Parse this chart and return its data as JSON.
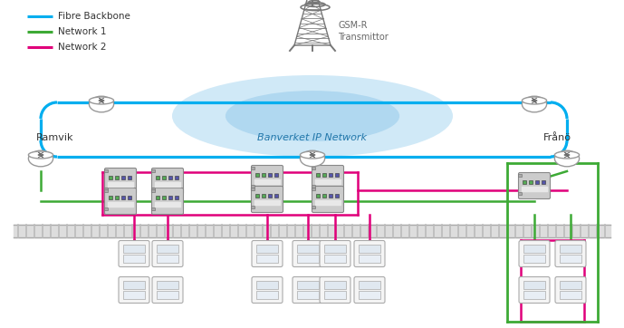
{
  "legend": [
    {
      "label": "Fibre Backbone",
      "color": "#00AEEF"
    },
    {
      "label": "Network 1",
      "color": "#3DAA35"
    },
    {
      "label": "Network 2",
      "color": "#E0007A"
    }
  ],
  "gsm_r_label": [
    "GSM-R",
    "Transmittor"
  ],
  "network_label": "Banverket IP Network",
  "location_left": "Ramvik",
  "location_right": "Frånö",
  "fiber_color": "#00AEEF",
  "net1_color": "#3DAA35",
  "net2_color": "#E0007A",
  "ellipse_fill_outer": "#D0E9F7",
  "ellipse_fill_inner": "#B0D8F0",
  "bg_color": "#FFFFFF",
  "tower_color": "#777777",
  "router_fill": "#FFFFFF",
  "router_edge": "#888888",
  "switch_fill": "#D8D8D8",
  "switch_edge": "#888888",
  "device_fill": "#F5F5F5",
  "device_edge": "#AAAAAA",
  "rail_fill": "#D0D0D0",
  "rail_edge": "#AAAAAA",
  "text_color": "#333333",
  "label_color": "#555555"
}
